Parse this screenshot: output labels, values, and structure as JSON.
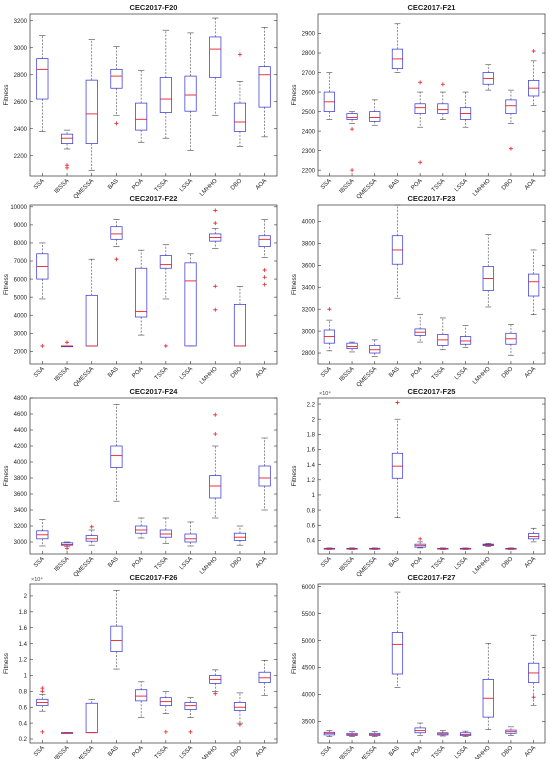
{
  "figure": {
    "categories": [
      "SSA",
      "IBSSA",
      "QMESSA",
      "BAS",
      "POA",
      "TSSA",
      "LSSA",
      "LMHHO",
      "DBO",
      "AOA"
    ],
    "ylabel": "Fitness",
    "colors": {
      "box": "#3b3bd6",
      "median": "#e8202a",
      "outlier": "#e8202a",
      "whisker": "#444444",
      "axis": "#333333"
    }
  },
  "chart_data": [
    {
      "type": "box",
      "title": "CEC2017-F20",
      "ylabel": "Fitness",
      "ylim": [
        2050,
        3250
      ],
      "yticks": [
        2200,
        2400,
        2600,
        2800,
        3000,
        3200
      ],
      "ytick_labels": [
        "2200",
        "2400",
        "2600",
        "2800",
        "3000",
        "3200"
      ],
      "exponent": "",
      "categories": [
        "SSA",
        "IBSSA",
        "QMESSA",
        "BAS",
        "POA",
        "TSSA",
        "LSSA",
        "LMHHO",
        "DBO",
        "AOA"
      ],
      "boxes": [
        {
          "min": 2380,
          "q1": 2620,
          "median": 2840,
          "q3": 2920,
          "max": 3090,
          "outliers": []
        },
        {
          "min": 2250,
          "q1": 2290,
          "median": 2330,
          "q3": 2360,
          "max": 2390,
          "outliers": [
            2130,
            2110
          ]
        },
        {
          "min": 2090,
          "q1": 2290,
          "median": 2510,
          "q3": 2760,
          "max": 3060,
          "outliers": []
        },
        {
          "min": 2500,
          "q1": 2700,
          "median": 2790,
          "q3": 2840,
          "max": 3010,
          "outliers": [
            2440
          ]
        },
        {
          "min": 2300,
          "q1": 2390,
          "median": 2470,
          "q3": 2590,
          "max": 2830,
          "outliers": []
        },
        {
          "min": 2330,
          "q1": 2520,
          "median": 2620,
          "q3": 2780,
          "max": 3130,
          "outliers": []
        },
        {
          "min": 2240,
          "q1": 2530,
          "median": 2650,
          "q3": 2790,
          "max": 3110,
          "outliers": []
        },
        {
          "min": 2500,
          "q1": 2780,
          "median": 2990,
          "q3": 3080,
          "max": 3220,
          "outliers": []
        },
        {
          "min": 2270,
          "q1": 2380,
          "median": 2450,
          "q3": 2590,
          "max": 2750,
          "outliers": [
            2950
          ]
        },
        {
          "min": 2340,
          "q1": 2560,
          "median": 2800,
          "q3": 2860,
          "max": 3150,
          "outliers": []
        }
      ]
    },
    {
      "type": "box",
      "title": "CEC2017-F21",
      "ylabel": "Fitness",
      "ylim": [
        2170,
        3000
      ],
      "yticks": [
        2200,
        2300,
        2400,
        2500,
        2600,
        2700,
        2800,
        2900
      ],
      "ytick_labels": [
        "2200",
        "2300",
        "2400",
        "2500",
        "2600",
        "2700",
        "2800",
        "2900"
      ],
      "exponent": "",
      "categories": [
        "SSA",
        "IBSSA",
        "QMESSA",
        "BAS",
        "POA",
        "TSSA",
        "LSSA",
        "LMHHO",
        "DBO",
        "AOA"
      ],
      "boxes": [
        {
          "min": 2460,
          "q1": 2500,
          "median": 2550,
          "q3": 2600,
          "max": 2700,
          "outliers": []
        },
        {
          "min": 2440,
          "q1": 2460,
          "median": 2470,
          "q3": 2490,
          "max": 2500,
          "outliers": [
            2410,
            2200
          ]
        },
        {
          "min": 2430,
          "q1": 2450,
          "median": 2470,
          "q3": 2500,
          "max": 2560,
          "outliers": []
        },
        {
          "min": 2700,
          "q1": 2720,
          "median": 2770,
          "q3": 2820,
          "max": 2950,
          "outliers": []
        },
        {
          "min": 2420,
          "q1": 2490,
          "median": 2520,
          "q3": 2540,
          "max": 2600,
          "outliers": [
            2650,
            2240
          ]
        },
        {
          "min": 2460,
          "q1": 2490,
          "median": 2510,
          "q3": 2540,
          "max": 2600,
          "outliers": [
            2640
          ]
        },
        {
          "min": 2420,
          "q1": 2460,
          "median": 2490,
          "q3": 2520,
          "max": 2600,
          "outliers": []
        },
        {
          "min": 2610,
          "q1": 2640,
          "median": 2670,
          "q3": 2700,
          "max": 2740,
          "outliers": []
        },
        {
          "min": 2440,
          "q1": 2490,
          "median": 2530,
          "q3": 2560,
          "max": 2610,
          "outliers": [
            2310
          ]
        },
        {
          "min": 2530,
          "q1": 2580,
          "median": 2620,
          "q3": 2660,
          "max": 2760,
          "outliers": [
            2810
          ]
        }
      ]
    },
    {
      "type": "box",
      "title": "CEC2017-F22",
      "ylabel": "Fitness",
      "ylim": [
        1300,
        10100
      ],
      "yticks": [
        2000,
        3000,
        4000,
        5000,
        6000,
        7000,
        8000,
        9000,
        10000
      ],
      "ytick_labels": [
        "2000",
        "3000",
        "4000",
        "5000",
        "6000",
        "7000",
        "8000",
        "9000",
        "10000"
      ],
      "exponent": "",
      "categories": [
        "SSA",
        "IBSSA",
        "QMESSA",
        "BAS",
        "POA",
        "TSSA",
        "LSSA",
        "LMHHO",
        "DBO",
        "AOA"
      ],
      "boxes": [
        {
          "min": 4900,
          "q1": 6000,
          "median": 6700,
          "q3": 7400,
          "max": 8000,
          "outliers": [
            2300
          ]
        },
        {
          "min": 2300,
          "q1": 2300,
          "median": 2300,
          "q3": 2300,
          "max": 2300,
          "outliers": [
            2500
          ]
        },
        {
          "min": 2300,
          "q1": 2300,
          "median": 2300,
          "q3": 5100,
          "max": 7100,
          "outliers": []
        },
        {
          "min": 7800,
          "q1": 8200,
          "median": 8500,
          "q3": 8900,
          "max": 9300,
          "outliers": [
            7100
          ]
        },
        {
          "min": 2900,
          "q1": 3900,
          "median": 4200,
          "q3": 6600,
          "max": 7600,
          "outliers": []
        },
        {
          "min": 4900,
          "q1": 6600,
          "median": 6800,
          "q3": 7300,
          "max": 7900,
          "outliers": [
            2300
          ]
        },
        {
          "min": 2300,
          "q1": 2300,
          "median": 5900,
          "q3": 6900,
          "max": 7400,
          "outliers": []
        },
        {
          "min": 7700,
          "q1": 8100,
          "median": 8300,
          "q3": 8500,
          "max": 8800,
          "outliers": [
            9800,
            9100,
            5600,
            4300
          ]
        },
        {
          "min": 2300,
          "q1": 2300,
          "median": 2300,
          "q3": 4600,
          "max": 5600,
          "outliers": []
        },
        {
          "min": 7200,
          "q1": 7800,
          "median": 8200,
          "q3": 8400,
          "max": 9300,
          "outliers": [
            6500,
            6100,
            5700
          ]
        }
      ]
    },
    {
      "type": "box",
      "title": "CEC2017-F23",
      "ylabel": "Fitness",
      "ylim": [
        2700,
        4150
      ],
      "yticks": [
        2800,
        3000,
        3200,
        3400,
        3600,
        3800,
        4000
      ],
      "ytick_labels": [
        "2800",
        "3000",
        "3200",
        "3400",
        "3600",
        "3800",
        "4000"
      ],
      "exponent": "",
      "categories": [
        "SSA",
        "IBSSA",
        "QMESSA",
        "BAS",
        "POA",
        "TSSA",
        "LSSA",
        "LMHHO",
        "DBO",
        "AOA"
      ],
      "boxes": [
        {
          "min": 2820,
          "q1": 2890,
          "median": 2950,
          "q3": 3010,
          "max": 3100,
          "outliers": [
            3200
          ]
        },
        {
          "min": 2810,
          "q1": 2840,
          "median": 2860,
          "q3": 2890,
          "max": 2900,
          "outliers": []
        },
        {
          "min": 2770,
          "q1": 2800,
          "median": 2830,
          "q3": 2870,
          "max": 2920,
          "outliers": []
        },
        {
          "min": 3300,
          "q1": 3610,
          "median": 3740,
          "q3": 3870,
          "max": 4150,
          "outliers": []
        },
        {
          "min": 2900,
          "q1": 2960,
          "median": 2990,
          "q3": 3020,
          "max": 3150,
          "outliers": []
        },
        {
          "min": 2830,
          "q1": 2870,
          "median": 2920,
          "q3": 2970,
          "max": 3120,
          "outliers": []
        },
        {
          "min": 2850,
          "q1": 2880,
          "median": 2910,
          "q3": 2950,
          "max": 3050,
          "outliers": []
        },
        {
          "min": 3220,
          "q1": 3370,
          "median": 3480,
          "q3": 3590,
          "max": 3880,
          "outliers": []
        },
        {
          "min": 2780,
          "q1": 2880,
          "median": 2930,
          "q3": 2980,
          "max": 3060,
          "outliers": []
        },
        {
          "min": 3150,
          "q1": 3320,
          "median": 3450,
          "q3": 3520,
          "max": 3740,
          "outliers": []
        }
      ]
    },
    {
      "type": "box",
      "title": "CEC2017-F24",
      "ylabel": "Fitness",
      "ylim": [
        2850,
        4800
      ],
      "yticks": [
        3000,
        3200,
        3400,
        3600,
        3800,
        4000,
        4200,
        4400,
        4600,
        4800
      ],
      "ytick_labels": [
        "3000",
        "3200",
        "3400",
        "3600",
        "3800",
        "4000",
        "4200",
        "4400",
        "4600",
        "4800"
      ],
      "exponent": "",
      "categories": [
        "SSA",
        "IBSSA",
        "QMESSA",
        "BAS",
        "POA",
        "TSSA",
        "LSSA",
        "LMHHO",
        "DBO",
        "AOA"
      ],
      "boxes": [
        {
          "min": 2950,
          "q1": 3040,
          "median": 3090,
          "q3": 3140,
          "max": 3280,
          "outliers": []
        },
        {
          "min": 2940,
          "q1": 2960,
          "median": 2970,
          "q3": 2990,
          "max": 3000,
          "outliers": [
            2920
          ]
        },
        {
          "min": 2960,
          "q1": 3010,
          "median": 3040,
          "q3": 3080,
          "max": 3150,
          "outliers": [
            3190
          ]
        },
        {
          "min": 3510,
          "q1": 3930,
          "median": 4080,
          "q3": 4200,
          "max": 4720,
          "outliers": []
        },
        {
          "min": 3050,
          "q1": 3110,
          "median": 3150,
          "q3": 3200,
          "max": 3300,
          "outliers": []
        },
        {
          "min": 2980,
          "q1": 3060,
          "median": 3100,
          "q3": 3150,
          "max": 3300,
          "outliers": []
        },
        {
          "min": 2950,
          "q1": 3000,
          "median": 3040,
          "q3": 3100,
          "max": 3250,
          "outliers": []
        },
        {
          "min": 3300,
          "q1": 3550,
          "median": 3700,
          "q3": 3830,
          "max": 4200,
          "outliers": [
            4590,
            4350
          ]
        },
        {
          "min": 2960,
          "q1": 3020,
          "median": 3060,
          "q3": 3110,
          "max": 3200,
          "outliers": []
        },
        {
          "min": 3400,
          "q1": 3700,
          "median": 3800,
          "q3": 3950,
          "max": 4300,
          "outliers": []
        }
      ]
    },
    {
      "type": "box",
      "title": "CEC2017-F25",
      "ylabel": "Fitness",
      "ylim": [
        0.22,
        2.28
      ],
      "yticks": [
        0.4,
        0.6,
        0.8,
        1.0,
        1.2,
        1.4,
        1.6,
        1.8,
        2.0,
        2.2
      ],
      "ytick_labels": [
        "0.4",
        "0.6",
        "0.8",
        "1",
        "1.2",
        "1.4",
        "1.6",
        "1.8",
        "2",
        "2.2"
      ],
      "exponent": "×10⁴",
      "categories": [
        "SSA",
        "IBSSA",
        "QMESSA",
        "BAS",
        "POA",
        "TSSA",
        "LSSA",
        "LMHHO",
        "DBO",
        "AOA"
      ],
      "boxes": [
        {
          "min": 0.28,
          "q1": 0.285,
          "median": 0.29,
          "q3": 0.295,
          "max": 0.3,
          "outliers": []
        },
        {
          "min": 0.28,
          "q1": 0.285,
          "median": 0.29,
          "q3": 0.295,
          "max": 0.3,
          "outliers": []
        },
        {
          "min": 0.28,
          "q1": 0.285,
          "median": 0.29,
          "q3": 0.295,
          "max": 0.3,
          "outliers": []
        },
        {
          "min": 0.7,
          "q1": 1.22,
          "median": 1.38,
          "q3": 1.55,
          "max": 2.0,
          "outliers": [
            2.22
          ]
        },
        {
          "min": 0.3,
          "q1": 0.31,
          "median": 0.33,
          "q3": 0.35,
          "max": 0.38,
          "outliers": [
            0.42
          ]
        },
        {
          "min": 0.28,
          "q1": 0.285,
          "median": 0.29,
          "q3": 0.295,
          "max": 0.3,
          "outliers": []
        },
        {
          "min": 0.28,
          "q1": 0.285,
          "median": 0.29,
          "q3": 0.295,
          "max": 0.3,
          "outliers": []
        },
        {
          "min": 0.32,
          "q1": 0.33,
          "median": 0.34,
          "q3": 0.35,
          "max": 0.36,
          "outliers": []
        },
        {
          "min": 0.28,
          "q1": 0.285,
          "median": 0.29,
          "q3": 0.295,
          "max": 0.3,
          "outliers": []
        },
        {
          "min": 0.38,
          "q1": 0.42,
          "median": 0.45,
          "q3": 0.49,
          "max": 0.56,
          "outliers": []
        }
      ]
    },
    {
      "type": "box",
      "title": "CEC2017-F26",
      "ylabel": "Fitness",
      "ylim": [
        0.15,
        2.15
      ],
      "yticks": [
        0.2,
        0.4,
        0.6,
        0.8,
        1.0,
        1.2,
        1.4,
        1.6,
        1.8,
        2.0
      ],
      "ytick_labels": [
        "0.2",
        "0.4",
        "0.6",
        "0.8",
        "1",
        "1.2",
        "1.4",
        "1.6",
        "1.8",
        "2"
      ],
      "exponent": "×10⁴",
      "categories": [
        "SSA",
        "IBSSA",
        "QMESSA",
        "BAS",
        "POA",
        "TSSA",
        "LSSA",
        "LMHHO",
        "DBO",
        "AOA"
      ],
      "boxes": [
        {
          "min": 0.55,
          "q1": 0.62,
          "median": 0.66,
          "q3": 0.7,
          "max": 0.76,
          "outliers": [
            0.84,
            0.8,
            0.29
          ]
        },
        {
          "min": 0.28,
          "q1": 0.28,
          "median": 0.28,
          "q3": 0.28,
          "max": 0.28,
          "outliers": []
        },
        {
          "min": 0.28,
          "q1": 0.28,
          "median": 0.28,
          "q3": 0.65,
          "max": 0.7,
          "outliers": []
        },
        {
          "min": 1.08,
          "q1": 1.3,
          "median": 1.44,
          "q3": 1.62,
          "max": 2.07,
          "outliers": []
        },
        {
          "min": 0.47,
          "q1": 0.68,
          "median": 0.74,
          "q3": 0.82,
          "max": 0.92,
          "outliers": []
        },
        {
          "min": 0.52,
          "q1": 0.62,
          "median": 0.67,
          "q3": 0.72,
          "max": 0.8,
          "outliers": [
            0.29
          ]
        },
        {
          "min": 0.47,
          "q1": 0.57,
          "median": 0.62,
          "q3": 0.66,
          "max": 0.72,
          "outliers": [
            0.29
          ]
        },
        {
          "min": 0.8,
          "q1": 0.9,
          "median": 0.95,
          "q3": 1.0,
          "max": 1.07,
          "outliers": [
            0.77
          ]
        },
        {
          "min": 0.4,
          "q1": 0.56,
          "median": 0.6,
          "q3": 0.66,
          "max": 0.78,
          "outliers": [
            0.38
          ]
        },
        {
          "min": 0.75,
          "q1": 0.91,
          "median": 0.97,
          "q3": 1.04,
          "max": 1.19,
          "outliers": []
        }
      ]
    },
    {
      "type": "box",
      "title": "CEC2017-F27",
      "ylabel": "Fitness",
      "ylim": [
        3100,
        6050
      ],
      "yticks": [
        3500,
        4000,
        4500,
        5000,
        5500,
        6000
      ],
      "ytick_labels": [
        "3500",
        "4000",
        "4500",
        "5000",
        "5500",
        "6000"
      ],
      "exponent": "",
      "categories": [
        "SSA",
        "IBSSA",
        "QMESSA",
        "BAS",
        "POA",
        "TSSA",
        "LSSA",
        "LMHHO",
        "DBO",
        "AOA"
      ],
      "boxes": [
        {
          "min": 3220,
          "q1": 3250,
          "median": 3280,
          "q3": 3300,
          "max": 3330,
          "outliers": []
        },
        {
          "min": 3220,
          "q1": 3240,
          "median": 3260,
          "q3": 3280,
          "max": 3310,
          "outliers": []
        },
        {
          "min": 3220,
          "q1": 3240,
          "median": 3260,
          "q3": 3280,
          "max": 3310,
          "outliers": []
        },
        {
          "min": 4130,
          "q1": 4380,
          "median": 4930,
          "q3": 5150,
          "max": 5900,
          "outliers": []
        },
        {
          "min": 3240,
          "q1": 3290,
          "median": 3330,
          "q3": 3380,
          "max": 3470,
          "outliers": []
        },
        {
          "min": 3230,
          "q1": 3250,
          "median": 3270,
          "q3": 3290,
          "max": 3330,
          "outliers": []
        },
        {
          "min": 3220,
          "q1": 3240,
          "median": 3260,
          "q3": 3290,
          "max": 3320,
          "outliers": []
        },
        {
          "min": 3350,
          "q1": 3580,
          "median": 3930,
          "q3": 4280,
          "max": 4950,
          "outliers": []
        },
        {
          "min": 3240,
          "q1": 3280,
          "median": 3310,
          "q3": 3340,
          "max": 3400,
          "outliers": []
        },
        {
          "min": 3800,
          "q1": 4220,
          "median": 4400,
          "q3": 4580,
          "max": 5100,
          "outliers": [
            3950
          ]
        }
      ]
    }
  ]
}
